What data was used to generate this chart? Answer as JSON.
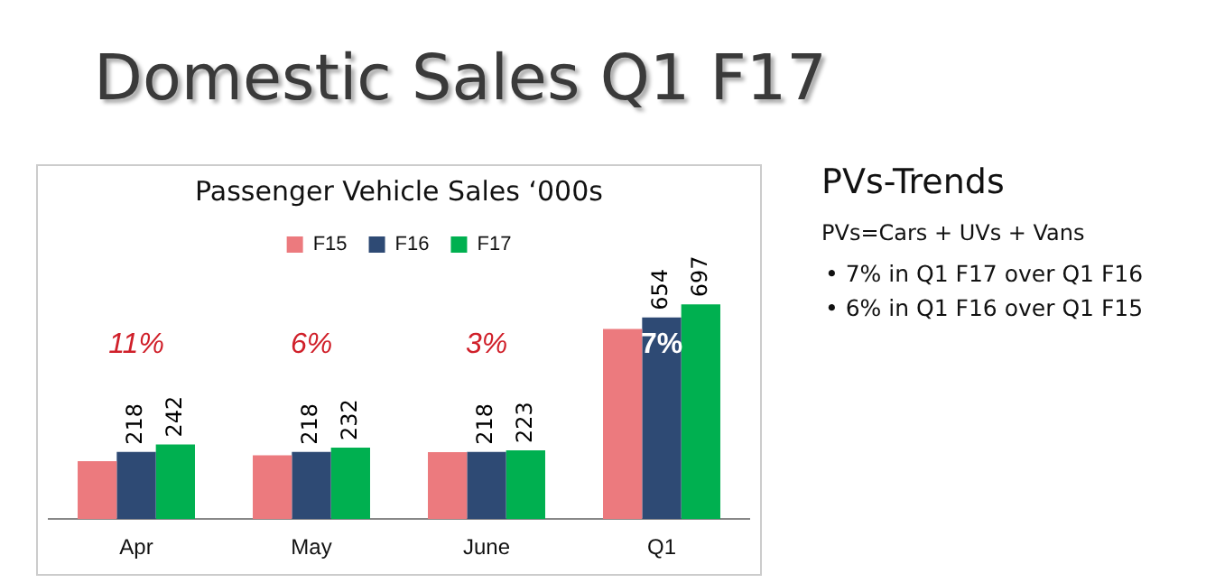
{
  "chart_data": {
    "type": "bar",
    "title": "Domestic Sales Q1 F17",
    "subtitle": "Passenger Vehicle Sales ‘000s",
    "categories": [
      "Apr",
      "May",
      "June",
      "Q1"
    ],
    "series": [
      {
        "name": "F15",
        "color": "#ec7a7e",
        "values": [
          188,
          207,
          217,
          617
        ]
      },
      {
        "name": "F16",
        "color": "#2e4a74",
        "values": [
          218,
          218,
          218,
          654
        ],
        "value_labels": [
          "218",
          "218",
          "218",
          "654"
        ]
      },
      {
        "name": "F17",
        "color": "#00b050",
        "values": [
          242,
          232,
          223,
          697
        ],
        "value_labels": [
          "242",
          "232",
          "223",
          "697"
        ]
      }
    ],
    "legend": "top",
    "grid": false,
    "annotations": [
      "11%",
      "6%",
      "3%",
      "7%",
      "PVs-Trends",
      "PVs=Cars + UVs + Vans",
      "• 7% in Q1 F17 over Q1 F16",
      "• 6% in Q1 F16 over Q1 F15"
    ]
  }
}
